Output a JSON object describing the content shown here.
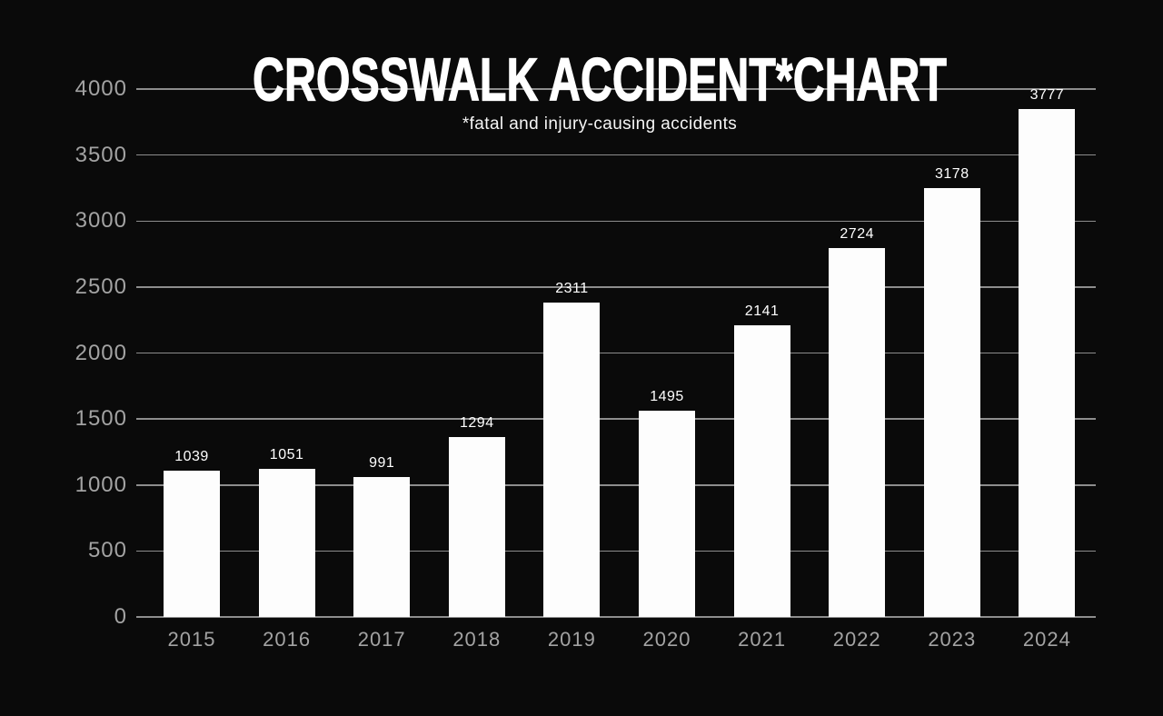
{
  "chart_data": {
    "type": "bar",
    "title": "CROSSWALK ACCIDENT*CHART",
    "subtitle": "*fatal and injury-causing accidents",
    "categories": [
      "2015",
      "2016",
      "2017",
      "2018",
      "2019",
      "2020",
      "2021",
      "2022",
      "2023",
      "2024"
    ],
    "values": [
      1039,
      1051,
      991,
      1294,
      2311,
      1495,
      2141,
      2724,
      3178,
      3777
    ],
    "xlabel": "",
    "ylabel": "",
    "ylim": [
      0,
      4000
    ],
    "yticks": [
      0,
      500,
      1000,
      1500,
      2000,
      2500,
      3000,
      3500,
      4000
    ],
    "grid": true,
    "legend_position": "none",
    "colors": {
      "background": "#0a0a0a",
      "bar": "#fdfdfd",
      "gridline": "#8d8d8d",
      "axis_label": "#a3a3a3",
      "value_label": "#ffffff",
      "title": "#ffffff"
    }
  }
}
